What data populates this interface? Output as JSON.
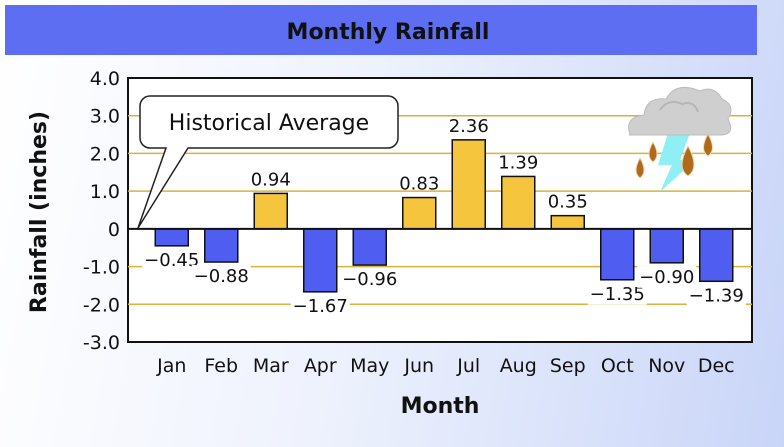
{
  "chart_data": {
    "type": "bar",
    "title": "Monthly Rainfall",
    "xlabel": "Month",
    "ylabel": "Rainfall (inches)",
    "ylim": [
      -3.0,
      4.0
    ],
    "yticks": [
      "4.0",
      "3.0",
      "2.0",
      "1.0",
      "0",
      "-1.0",
      "-2.0",
      "-3.0"
    ],
    "grid": true,
    "categories": [
      "Jan",
      "Feb",
      "Mar",
      "Apr",
      "May",
      "Jun",
      "Jul",
      "Aug",
      "Sep",
      "Oct",
      "Nov",
      "Dec"
    ],
    "values": [
      -0.45,
      -0.88,
      0.94,
      -1.67,
      -0.96,
      0.83,
      2.36,
      1.39,
      0.35,
      -1.35,
      -0.9,
      -1.39
    ],
    "annotation": "Historical Average",
    "colors": {
      "positive": "#f5c53e",
      "negative": "#4f5ef0",
      "title_bar": "#5d6ef2",
      "grid": "#d9b23a"
    },
    "icon": "storm-cloud-icon"
  }
}
